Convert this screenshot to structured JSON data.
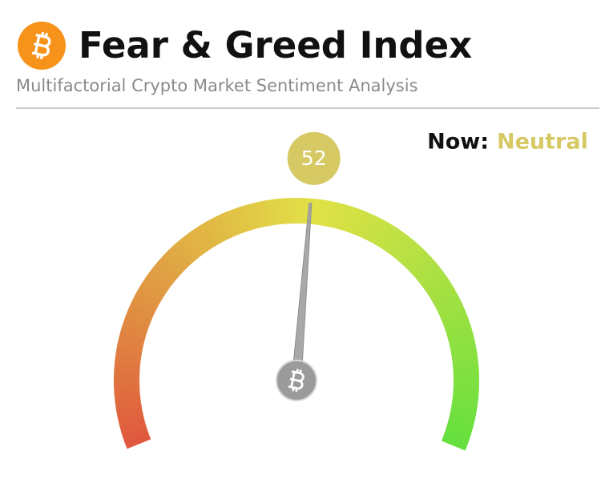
{
  "chart_data": {
    "type": "gauge",
    "title": "Fear & Greed Index",
    "subtitle": "Multifactorial Crypto Market Sentiment Analysis",
    "status_label": "Now:",
    "status": "Neutral",
    "color": "#d6c964",
    "value": 52,
    "ylim": [
      0,
      100
    ]
  }
}
